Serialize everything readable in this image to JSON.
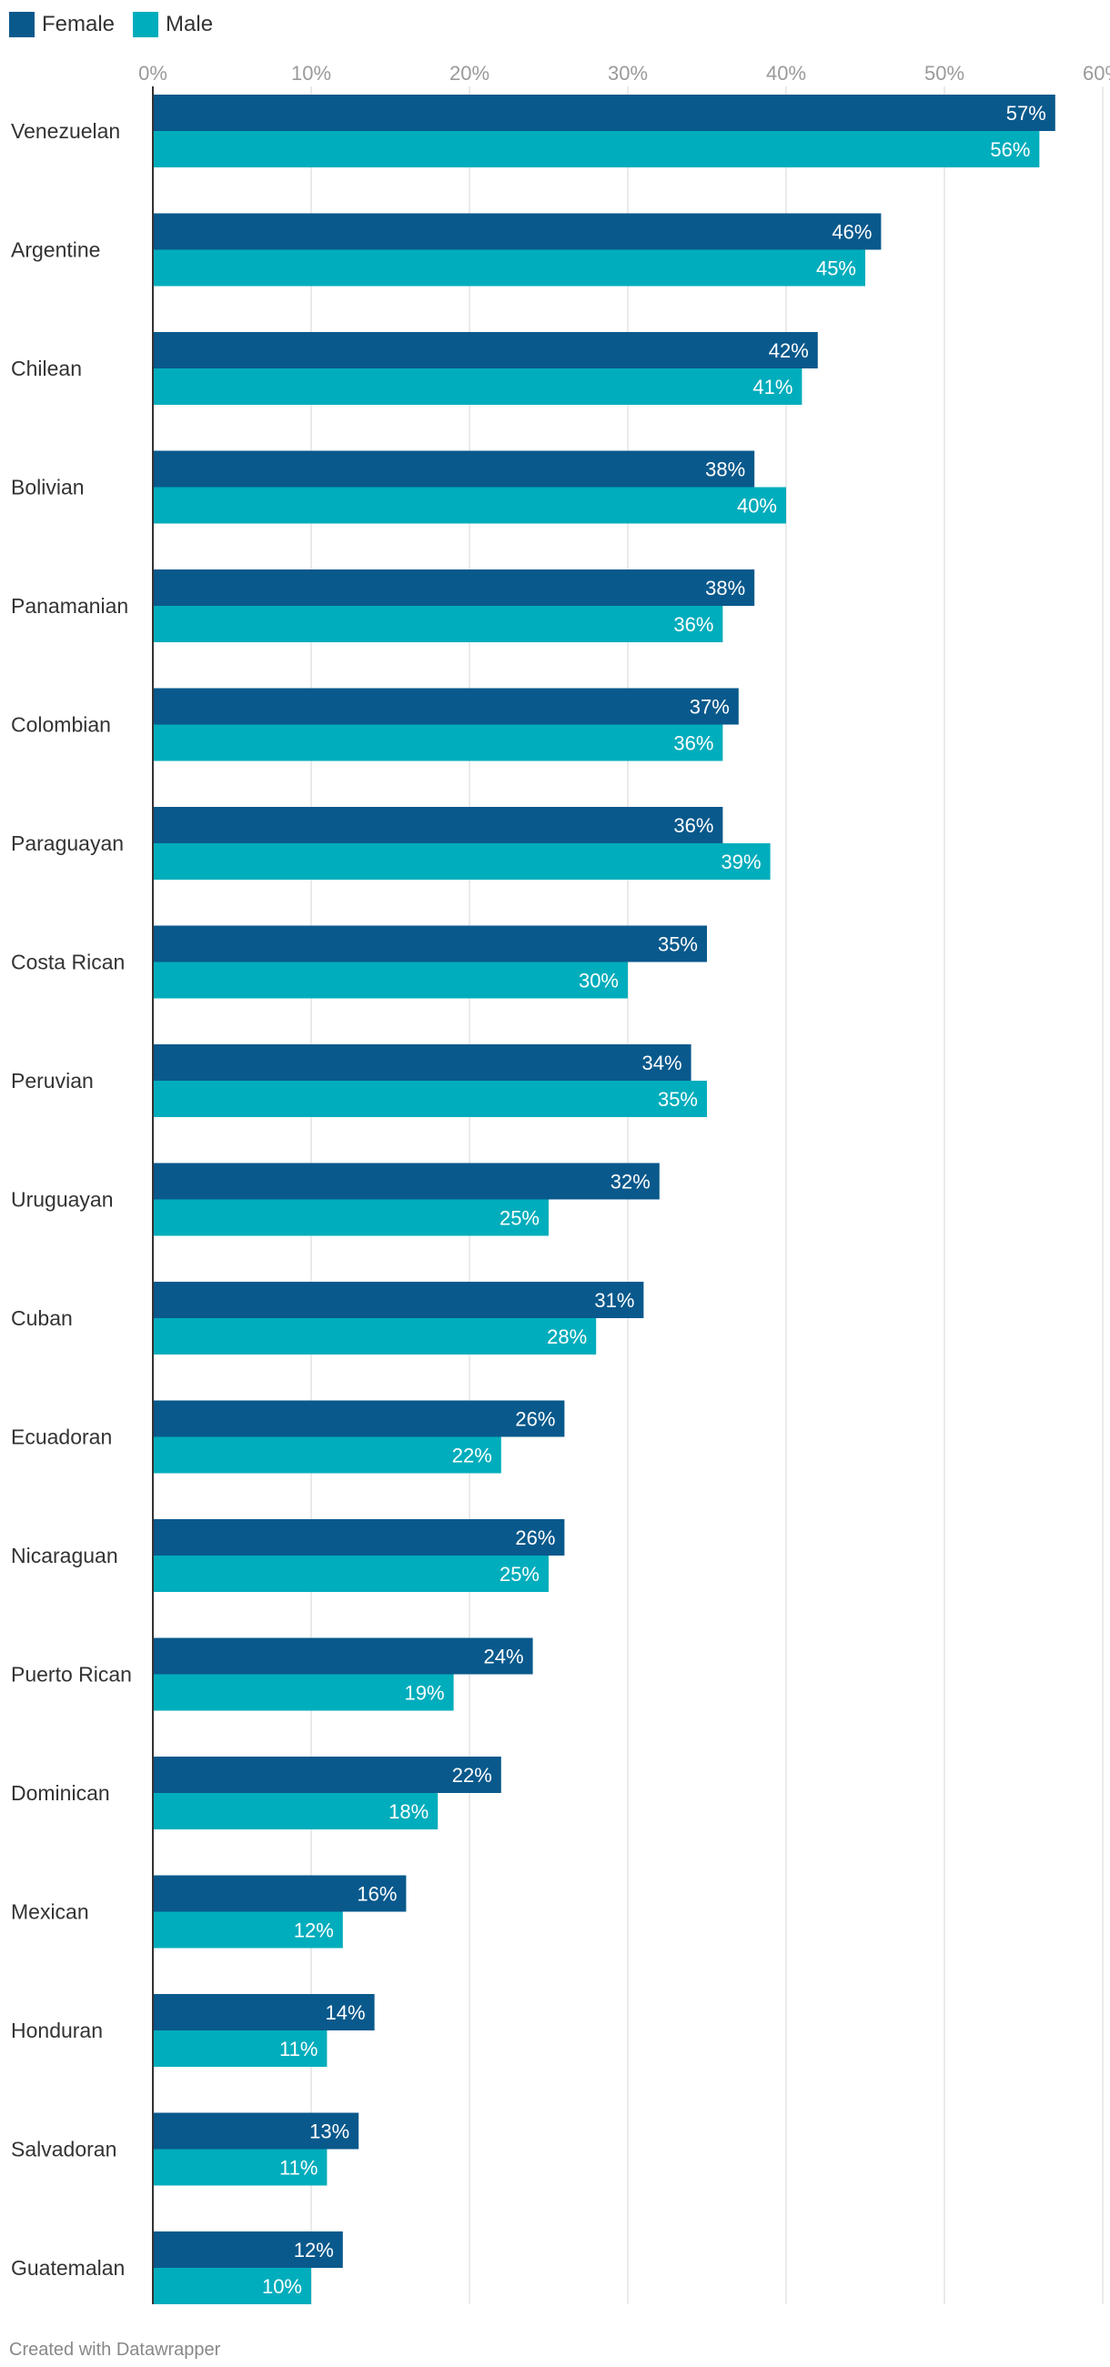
{
  "legend": [
    {
      "label": "Female",
      "color": "#09598c"
    },
    {
      "label": "Male",
      "color": "#00adbc"
    }
  ],
  "chart_data": {
    "type": "bar",
    "orientation": "horizontal",
    "xlim": [
      0,
      60
    ],
    "x_ticks": [
      "0%",
      "10%",
      "20%",
      "30%",
      "40%",
      "50%",
      "60%"
    ],
    "grid": true,
    "legend_position": "top-left",
    "categories": [
      "Venezuelan",
      "Argentine",
      "Chilean",
      "Bolivian",
      "Panamanian",
      "Colombian",
      "Paraguayan",
      "Costa Rican",
      "Peruvian",
      "Uruguayan",
      "Cuban",
      "Ecuadoran",
      "Nicaraguan",
      "Puerto Rican",
      "Dominican",
      "Mexican",
      "Honduran",
      "Salvadoran",
      "Guatemalan"
    ],
    "series": [
      {
        "name": "Female",
        "color": "#09598c",
        "values": [
          57,
          46,
          42,
          38,
          38,
          37,
          36,
          35,
          34,
          32,
          31,
          26,
          26,
          24,
          22,
          16,
          14,
          13,
          12
        ]
      },
      {
        "name": "Male",
        "color": "#00adbc",
        "values": [
          56,
          45,
          41,
          40,
          36,
          36,
          39,
          30,
          35,
          25,
          28,
          22,
          25,
          19,
          18,
          12,
          11,
          11,
          10
        ]
      }
    ]
  },
  "footer": {
    "credit": "Created with Datawrapper"
  }
}
